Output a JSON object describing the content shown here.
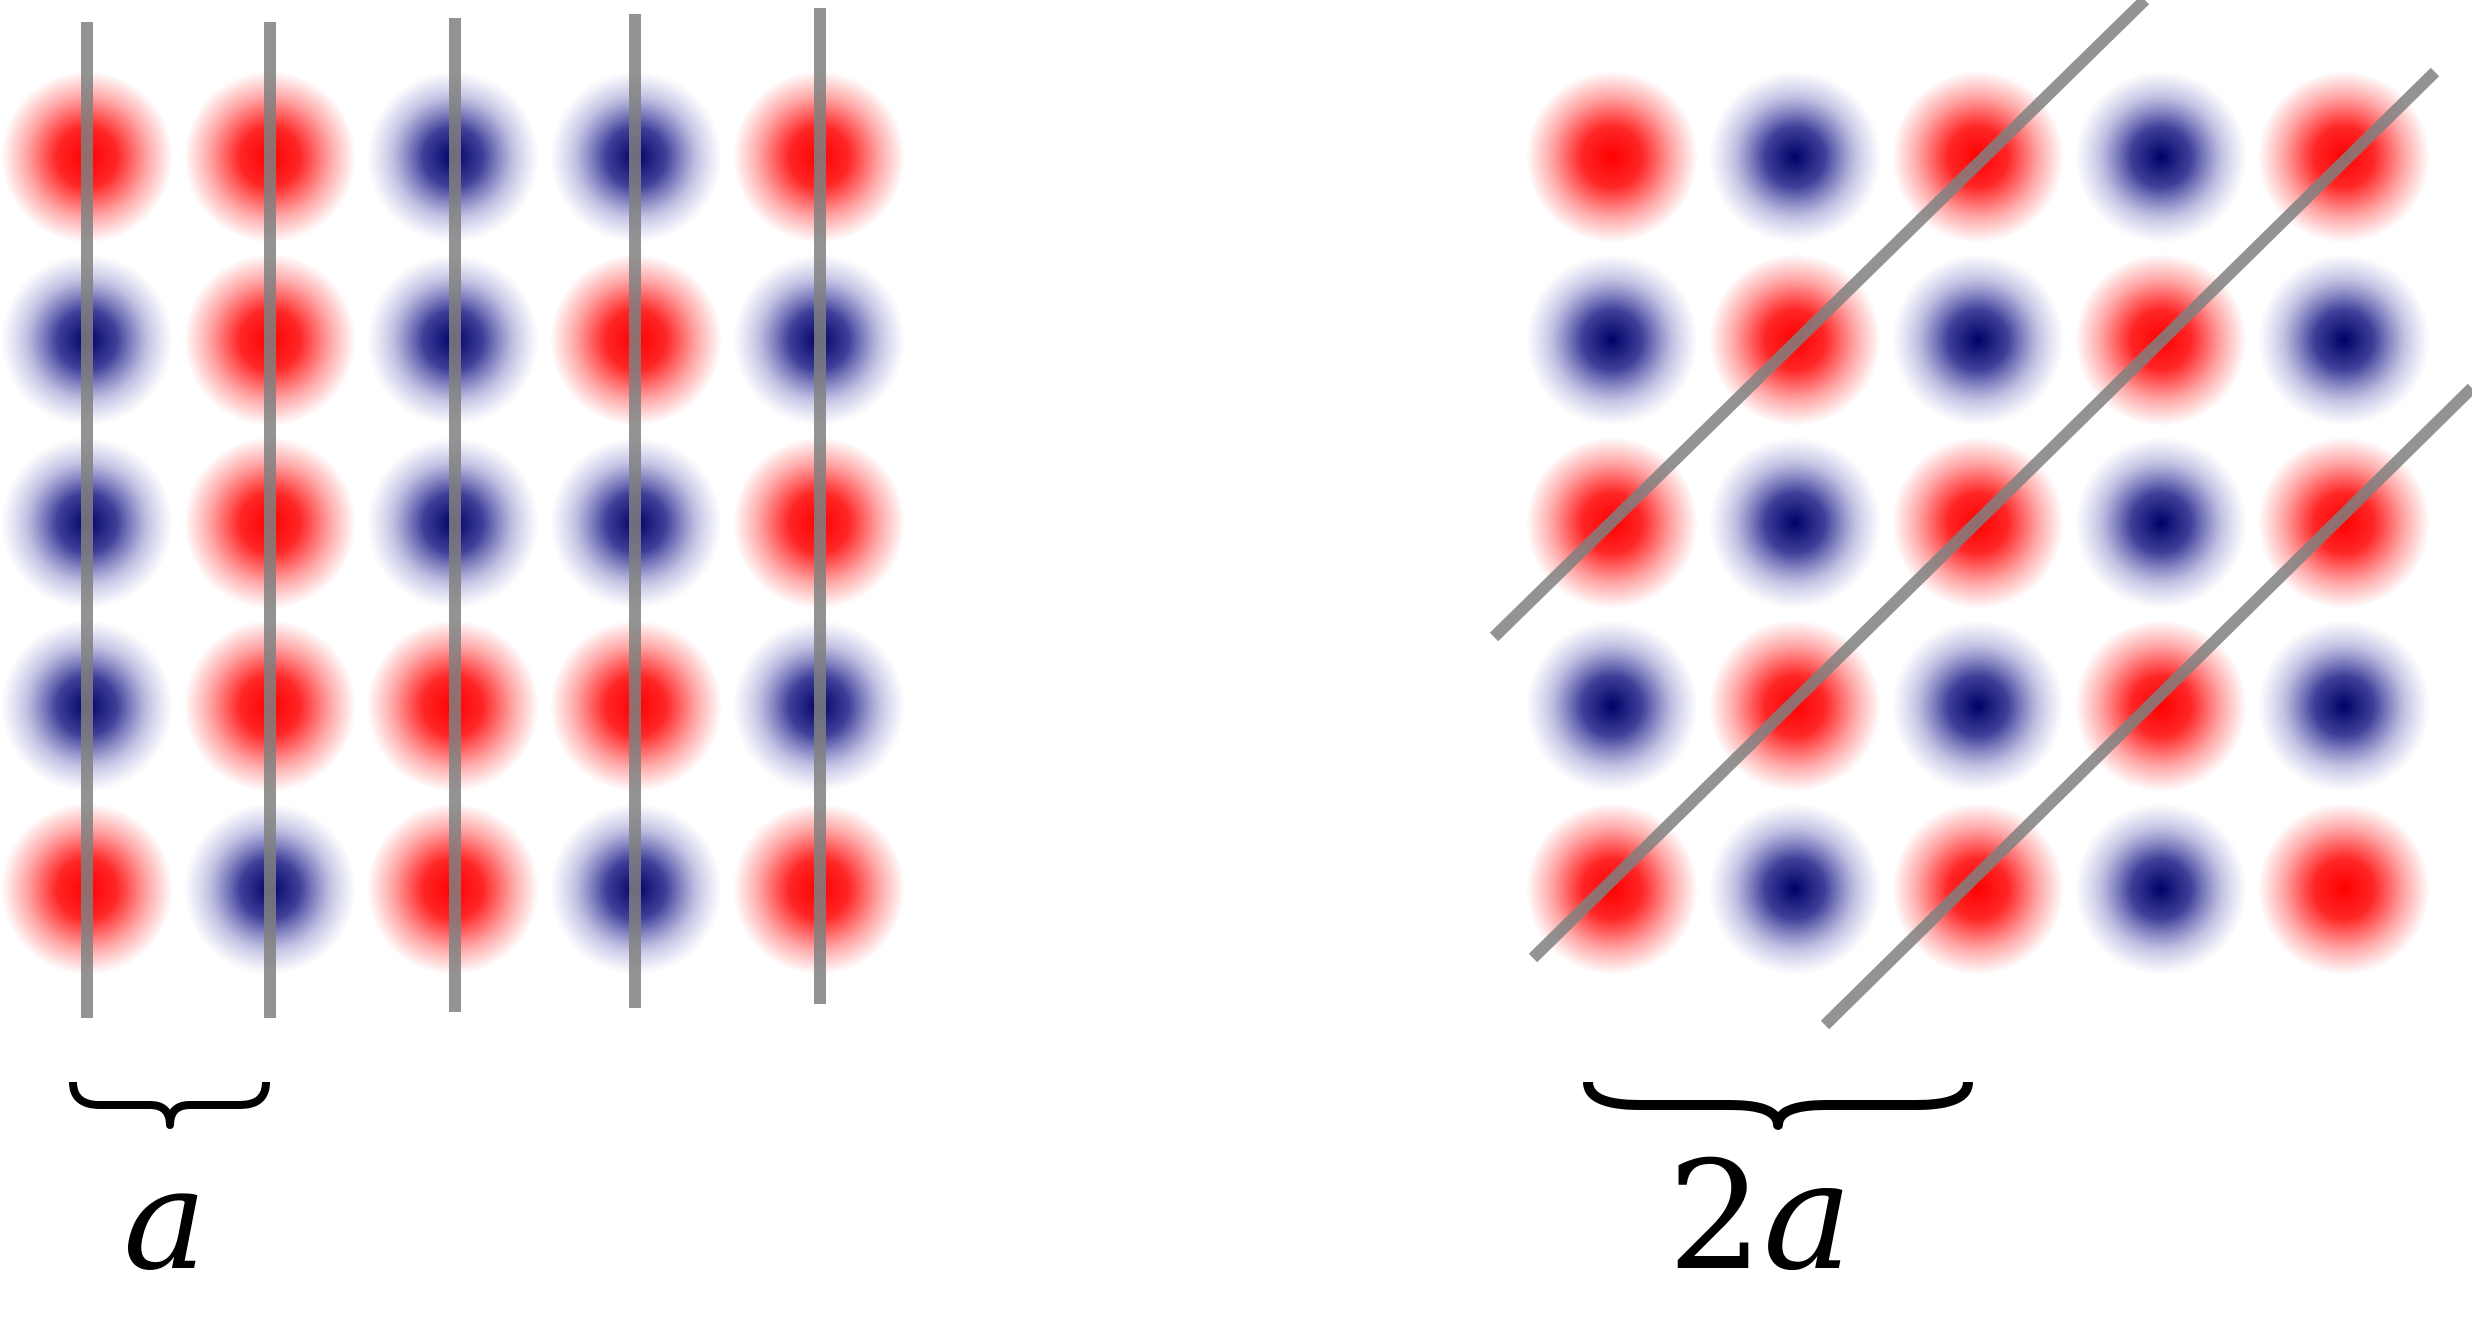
{
  "colors": {
    "red": "#ff0000",
    "blue": "#000066",
    "line": "#808080",
    "text": "#000000",
    "background": "#ffffff"
  },
  "left_panel": {
    "grid": [
      [
        "red",
        "red",
        "blue",
        "blue",
        "red"
      ],
      [
        "blue",
        "red",
        "blue",
        "red",
        "blue"
      ],
      [
        "blue",
        "red",
        "blue",
        "blue",
        "red"
      ],
      [
        "blue",
        "red",
        "red",
        "red",
        "blue"
      ],
      [
        "red",
        "blue",
        "red",
        "blue",
        "red"
      ]
    ],
    "lines": "vertical",
    "label": {
      "text": "a"
    }
  },
  "right_panel": {
    "grid": [
      [
        "red",
        "blue",
        "red",
        "blue",
        "red"
      ],
      [
        "blue",
        "red",
        "blue",
        "red",
        "blue"
      ],
      [
        "red",
        "blue",
        "red",
        "blue",
        "red"
      ],
      [
        "blue",
        "red",
        "blue",
        "red",
        "blue"
      ],
      [
        "red",
        "blue",
        "red",
        "blue",
        "red"
      ]
    ],
    "lines": "diagonal",
    "label": {
      "num": "2",
      "var": "a"
    }
  }
}
